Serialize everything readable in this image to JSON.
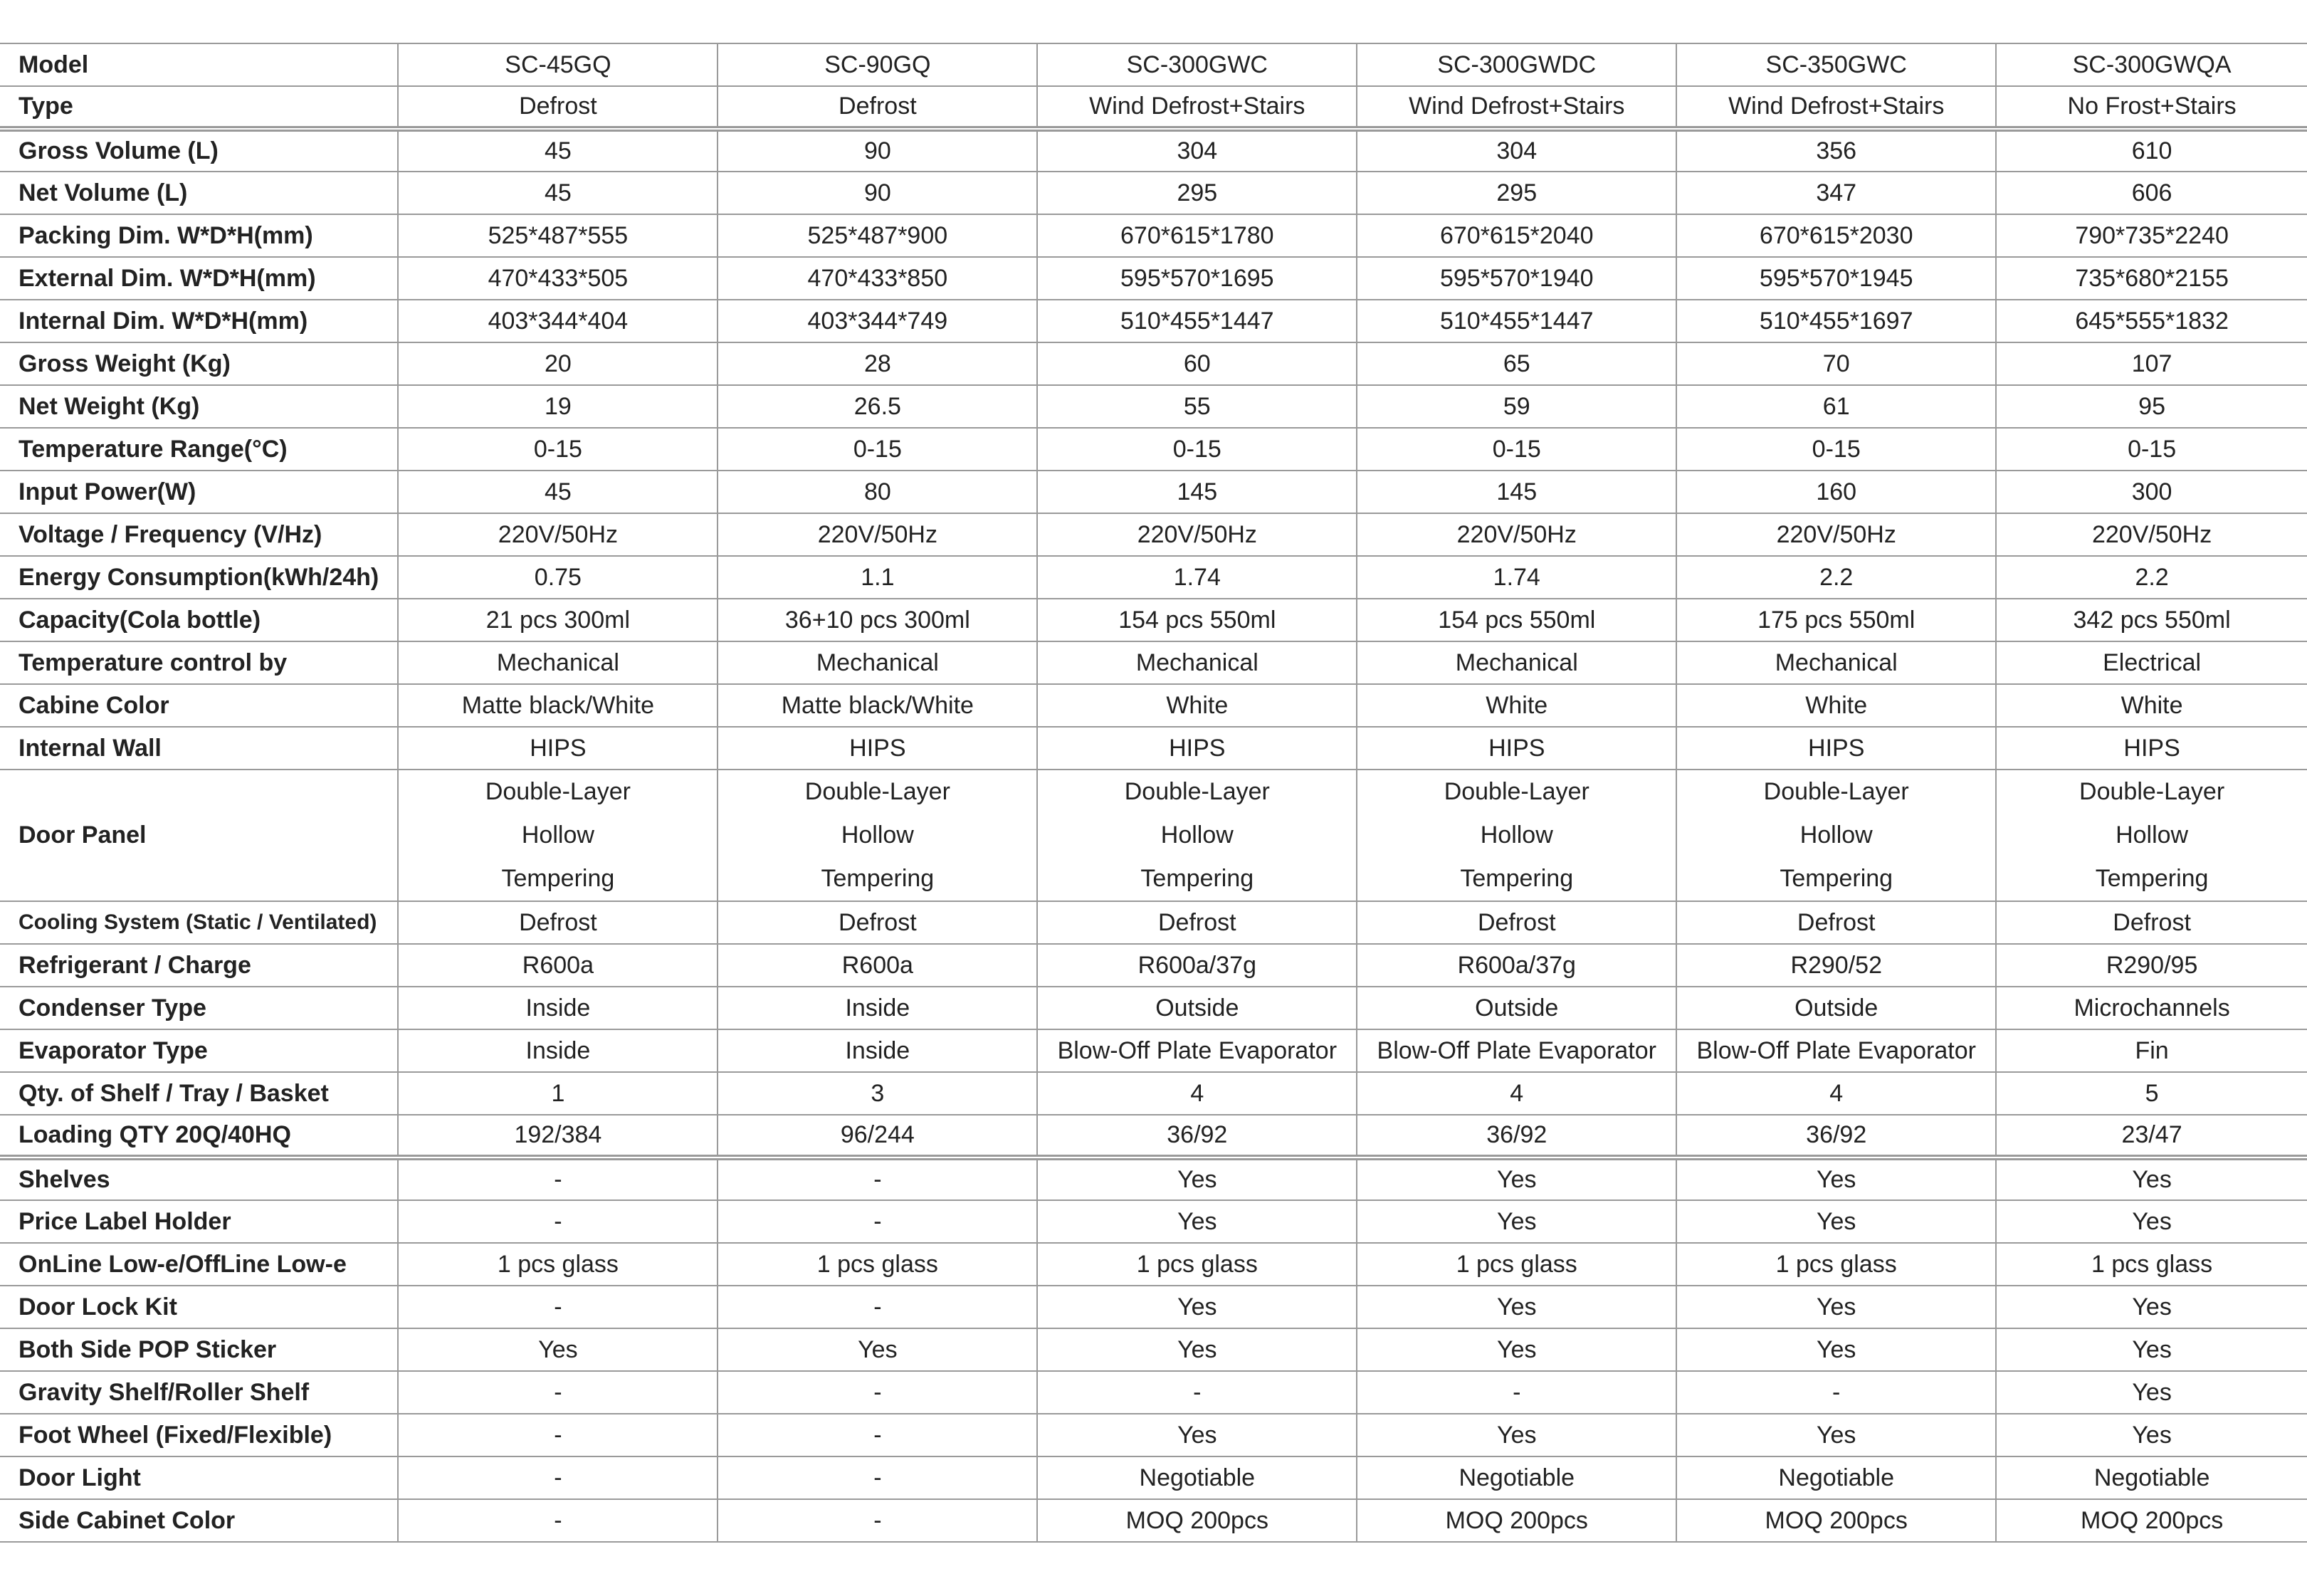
{
  "columns": [
    "Model",
    "SC-45GQ",
    "SC-90GQ",
    "SC-300GWC",
    "SC-300GWDC",
    "SC-350GWC",
    "SC-300GWQA"
  ],
  "groups": [
    {
      "rows": [
        {
          "label": "Type",
          "values": [
            "Defrost",
            "Defrost",
            "Wind Defrost+Stairs",
            "Wind Defrost+Stairs",
            "Wind Defrost+Stairs",
            "No Frost+Stairs"
          ]
        }
      ]
    },
    {
      "rows": [
        {
          "label": "Gross Volume (L)",
          "values": [
            "45",
            "90",
            "304",
            "304",
            "356",
            "610"
          ]
        },
        {
          "label": "Net Volume (L)",
          "values": [
            "45",
            "90",
            "295",
            "295",
            "347",
            "606"
          ]
        },
        {
          "label": "Packing Dim. W*D*H(mm)",
          "values": [
            "525*487*555",
            "525*487*900",
            "670*615*1780",
            "670*615*2040",
            "670*615*2030",
            "790*735*2240"
          ]
        },
        {
          "label": "External Dim. W*D*H(mm)",
          "values": [
            "470*433*505",
            "470*433*850",
            "595*570*1695",
            "595*570*1940",
            "595*570*1945",
            "735*680*2155"
          ]
        },
        {
          "label": "Internal Dim.  W*D*H(mm)",
          "values": [
            "403*344*404",
            "403*344*749",
            "510*455*1447",
            "510*455*1447",
            "510*455*1697",
            "645*555*1832"
          ]
        },
        {
          "label": "Gross Weight (Kg)",
          "values": [
            "20",
            "28",
            "60",
            "65",
            "70",
            "107"
          ]
        },
        {
          "label": "Net Weight (Kg)",
          "values": [
            "19",
            "26.5",
            "55",
            "59",
            "61",
            "95"
          ]
        },
        {
          "label": "Temperature Range(°C)",
          "values": [
            "0-15",
            "0-15",
            "0-15",
            "0-15",
            "0-15",
            "0-15"
          ]
        },
        {
          "label": "Input Power(W)",
          "values": [
            "45",
            "80",
            "145",
            "145",
            "160",
            "300"
          ]
        },
        {
          "label": "Voltage / Frequency (V/Hz)",
          "values": [
            "220V/50Hz",
            "220V/50Hz",
            "220V/50Hz",
            "220V/50Hz",
            "220V/50Hz",
            "220V/50Hz"
          ]
        },
        {
          "label": "Energy Consumption(kWh/24h)",
          "values": [
            "0.75",
            "1.1",
            "1.74",
            "1.74",
            "2.2",
            "2.2"
          ]
        },
        {
          "label": "Capacity(Cola bottle)",
          "values": [
            "21 pcs 300ml",
            "36+10 pcs 300ml",
            "154 pcs 550ml",
            "154 pcs 550ml",
            "175 pcs 550ml",
            "342 pcs 550ml"
          ]
        },
        {
          "label": "Temperature control by",
          "values": [
            "Mechanical",
            "Mechanical",
            "Mechanical",
            "Mechanical",
            "Mechanical",
            "Electrical"
          ]
        },
        {
          "label": "Cabine Color",
          "values": [
            "Matte black/White",
            "Matte black/White",
            "White",
            "White",
            "White",
            "White"
          ]
        },
        {
          "label": "Internal Wall",
          "values": [
            "HIPS",
            "HIPS",
            "HIPS",
            "HIPS",
            "HIPS",
            "HIPS"
          ]
        },
        {
          "label": "Door Panel",
          "multiline": true,
          "values": [
            [
              "Double-Layer",
              "Hollow",
              "Tempering"
            ],
            [
              "Double-Layer",
              "Hollow",
              "Tempering"
            ],
            [
              "Double-Layer",
              "Hollow",
              "Tempering"
            ],
            [
              "Double-Layer",
              "Hollow",
              "Tempering"
            ],
            [
              "Double-Layer",
              "Hollow",
              "Tempering"
            ],
            [
              "Double-Layer",
              "Hollow",
              "Tempering"
            ]
          ]
        },
        {
          "label": "Cooling System (Static / Ventilated)",
          "small": true,
          "values": [
            "Defrost",
            "Defrost",
            "Defrost",
            "Defrost",
            "Defrost",
            "Defrost"
          ]
        },
        {
          "label": "Refrigerant / Charge",
          "values": [
            "R600a",
            "R600a",
            "R600a/37g",
            "R600a/37g",
            "R290/52",
            "R290/95"
          ]
        },
        {
          "label": "Condenser Type",
          "values": [
            "Inside",
            "Inside",
            "Outside",
            "Outside",
            "Outside",
            "Microchannels"
          ]
        },
        {
          "label": "Evaporator Type",
          "values": [
            "Inside",
            "Inside",
            "Blow-Off Plate Evaporator",
            "Blow-Off Plate Evaporator",
            "Blow-Off Plate Evaporator",
            "Fin"
          ]
        },
        {
          "label": "Qty. of Shelf / Tray / Basket",
          "values": [
            "1",
            "3",
            "4",
            "4",
            "4",
            "5"
          ]
        },
        {
          "label": "Loading QTY 20Q/40HQ",
          "values": [
            "192/384",
            "96/244",
            "36/92",
            "36/92",
            "36/92",
            "23/47"
          ]
        }
      ]
    },
    {
      "rows": [
        {
          "label": "Shelves",
          "values": [
            "-",
            "-",
            "Yes",
            "Yes",
            "Yes",
            "Yes"
          ]
        },
        {
          "label": "Price Label Holder",
          "values": [
            "-",
            "-",
            "Yes",
            "Yes",
            "Yes",
            "Yes"
          ]
        },
        {
          "label": "OnLine Low-e/OffLine Low-e",
          "values": [
            "1 pcs glass",
            "1 pcs glass",
            "1 pcs glass",
            "1 pcs glass",
            "1 pcs glass",
            "1 pcs glass"
          ]
        },
        {
          "label": "Door Lock Kit",
          "values": [
            "-",
            "-",
            "Yes",
            "Yes",
            "Yes",
            "Yes"
          ]
        },
        {
          "label": "Both Side POP Sticker",
          "values": [
            "Yes",
            "Yes",
            "Yes",
            "Yes",
            "Yes",
            "Yes"
          ]
        },
        {
          "label": "Gravity Shelf/Roller Shelf",
          "values": [
            "-",
            "-",
            "-",
            "-",
            "-",
            "Yes"
          ]
        },
        {
          "label": "Foot Wheel (Fixed/Flexible)",
          "values": [
            "-",
            "-",
            "Yes",
            "Yes",
            "Yes",
            "Yes"
          ]
        },
        {
          "label": "Door Light",
          "values": [
            "-",
            "-",
            "Negotiable",
            "Negotiable",
            "Negotiable",
            "Negotiable"
          ]
        },
        {
          "label": "Side Cabinet Color",
          "values": [
            "-",
            "-",
            "MOQ 200pcs",
            "MOQ 200pcs",
            "MOQ 200pcs",
            "MOQ 200pcs"
          ]
        }
      ]
    }
  ]
}
